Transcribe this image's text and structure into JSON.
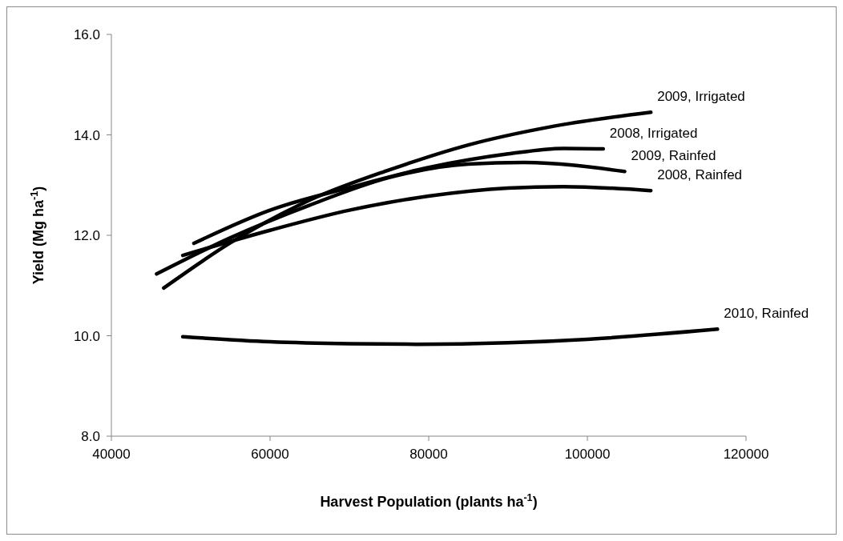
{
  "chart_data": {
    "type": "line",
    "xlabel": "Harvest Population (plants ha$^{-1}$)",
    "ylabel": "Yield (Mg ha$^{-1}$)",
    "xlim": [
      40000,
      120000
    ],
    "xticks": [
      40000,
      60000,
      80000,
      100000,
      120000
    ],
    "ylim": [
      8,
      16
    ],
    "yticks": [
      {
        "value": 8,
        "label": "8.0"
      },
      {
        "value": 10,
        "label": "10.0"
      },
      {
        "value": 12,
        "label": "12.0"
      },
      {
        "value": 14,
        "label": "14.0"
      },
      {
        "value": 16,
        "label": "16.0"
      }
    ],
    "grid": false,
    "legend": false,
    "marker": "none",
    "line_style": "solid",
    "series": [
      {
        "name": "2009, Irrigated",
        "color": "#000000",
        "x": [
          46600,
          55000,
          65000,
          75000,
          85000,
          95000,
          108000
        ],
        "values": [
          10.95,
          11.85,
          12.7,
          13.3,
          13.8,
          14.15,
          14.45
        ]
      },
      {
        "name": "2008, Irrigated",
        "color": "#000000",
        "x": [
          50400,
          60000,
          70000,
          80000,
          90000,
          97000,
          102000
        ],
        "values": [
          11.84,
          12.5,
          12.95,
          13.35,
          13.62,
          13.73,
          13.72
        ]
      },
      {
        "name": "2009, Rainfed",
        "color": "#000000",
        "x": [
          45700,
          55000,
          65000,
          75000,
          85000,
          92000,
          104700
        ],
        "values": [
          11.23,
          11.95,
          12.6,
          13.15,
          13.42,
          13.45,
          13.27
        ]
      },
      {
        "name": "2008, Rainfed",
        "color": "#000000",
        "x": [
          49000,
          60000,
          70000,
          80000,
          90000,
          97000,
          108000
        ],
        "values": [
          11.6,
          12.1,
          12.5,
          12.78,
          12.94,
          12.97,
          12.89
        ]
      },
      {
        "name": "2010, Rainfed",
        "color": "#000000",
        "x": [
          49000,
          60000,
          70000,
          78500,
          90000,
          100000,
          116400
        ],
        "values": [
          9.98,
          9.88,
          9.84,
          9.83,
          9.86,
          9.93,
          10.13
        ]
      }
    ]
  }
}
